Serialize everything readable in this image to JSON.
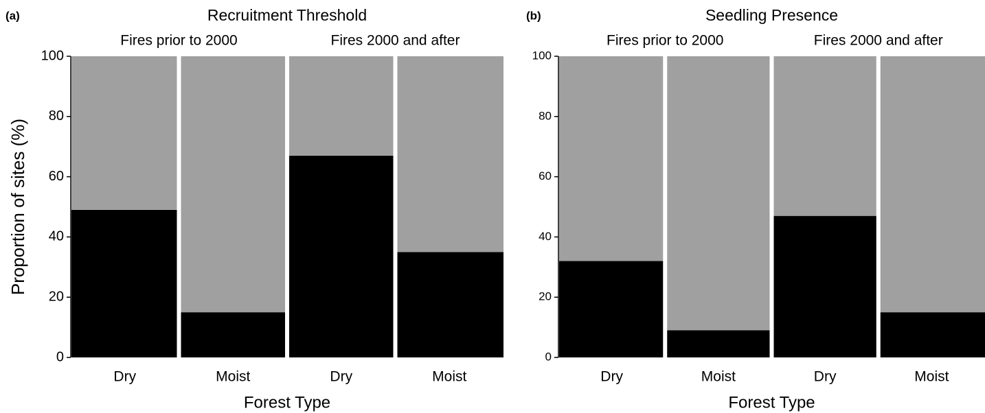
{
  "chart_data": [
    {
      "type": "bar",
      "stacked": true,
      "panel_label": "(a)",
      "title": "Recruitment Threshold",
      "groups": [
        "Fires prior to 2000",
        "Fires 2000 and after"
      ],
      "categories": [
        "Dry",
        "Moist",
        "Dry",
        "Moist"
      ],
      "series": [
        {
          "color": "#000000",
          "values": [
            49,
            15,
            67,
            35
          ]
        },
        {
          "color": "#a0a0a0",
          "values": [
            51,
            85,
            33,
            65
          ]
        }
      ],
      "xlabel": "Forest Type",
      "ylabel": "Proportion of sites (%)",
      "ylim": [
        0,
        100
      ],
      "yticks": [
        0,
        20,
        40,
        60,
        80,
        100
      ]
    },
    {
      "type": "bar",
      "stacked": true,
      "panel_label": "(b)",
      "title": "Seedling Presence",
      "groups": [
        "Fires prior to 2000",
        "Fires 2000 and after"
      ],
      "categories": [
        "Dry",
        "Moist",
        "Dry",
        "Moist"
      ],
      "series": [
        {
          "color": "#000000",
          "values": [
            32,
            9,
            47,
            15
          ]
        },
        {
          "color": "#a0a0a0",
          "values": [
            68,
            91,
            53,
            85
          ]
        }
      ],
      "xlabel": "Forest Type",
      "ylim": [
        0,
        100
      ],
      "yticks": [
        0,
        20,
        40,
        60,
        80,
        100
      ]
    }
  ]
}
